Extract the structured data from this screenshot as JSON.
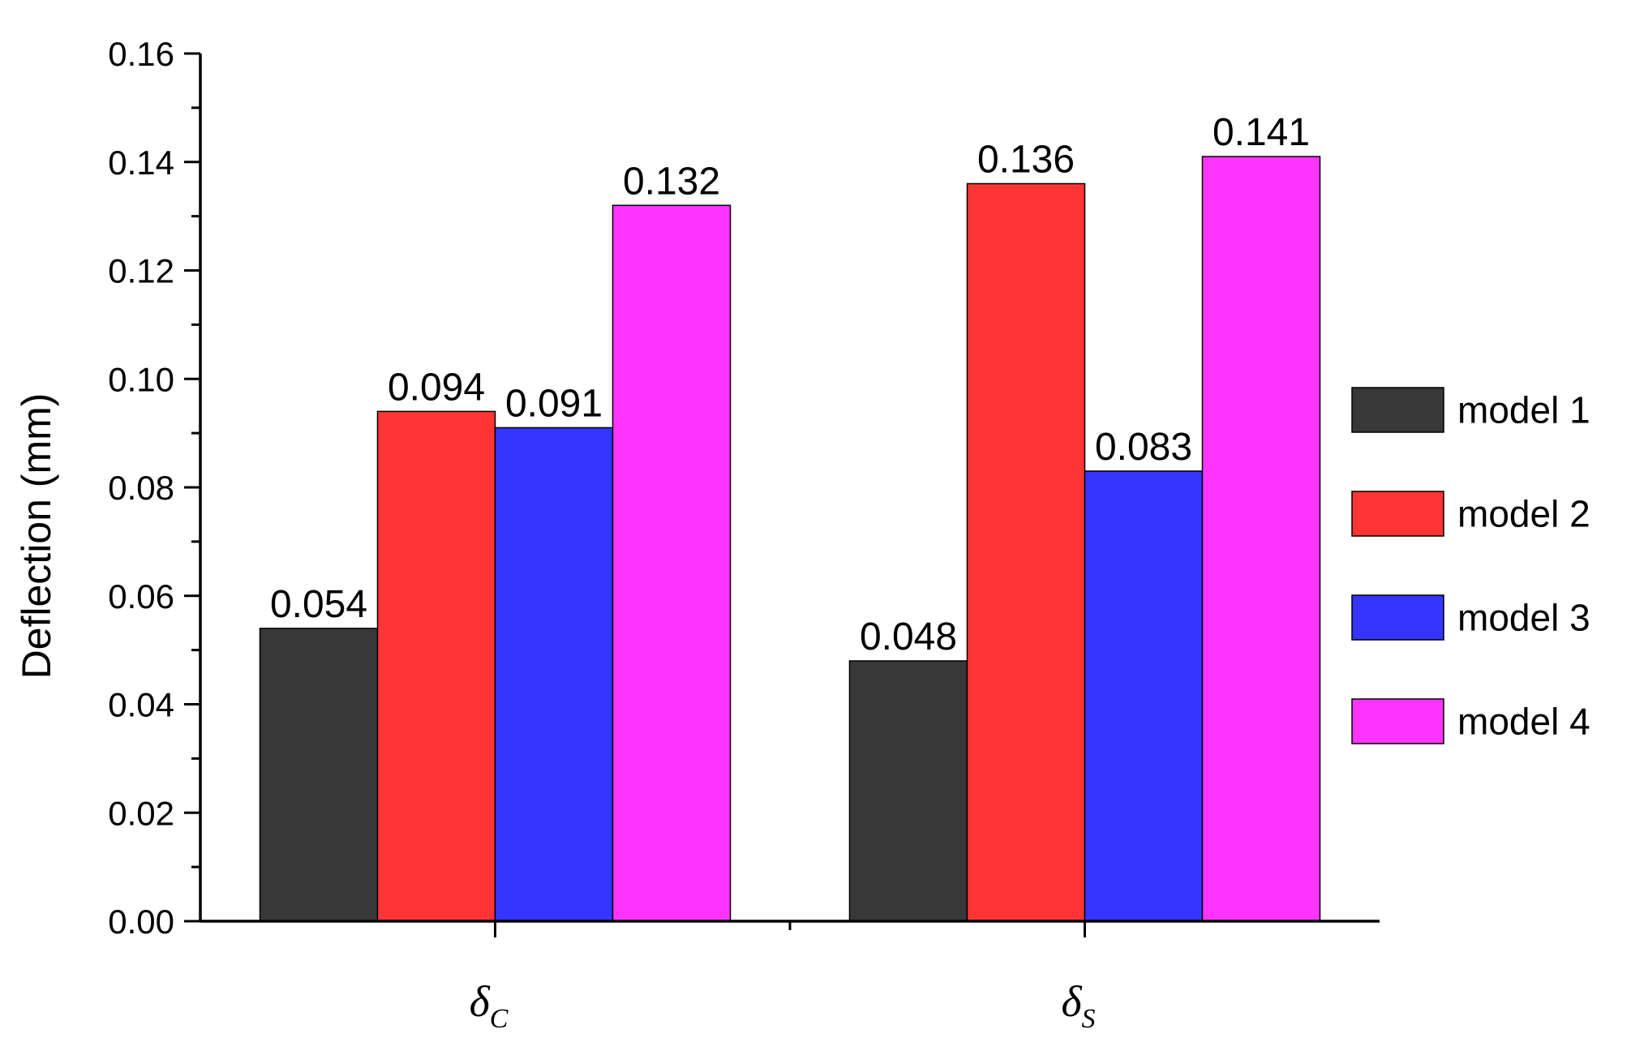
{
  "chart_data": {
    "type": "bar",
    "ylabel": "Deflection (mm)",
    "xlabel": "",
    "ylim": [
      0,
      0.16
    ],
    "yticks": [
      "0.00",
      "0.02",
      "0.04",
      "0.06",
      "0.08",
      "0.10",
      "0.12",
      "0.14",
      "0.16"
    ],
    "categories": [
      {
        "symbol": "δ",
        "sub": "C"
      },
      {
        "symbol": "δ",
        "sub": "S"
      }
    ],
    "series": [
      {
        "name": "model 1",
        "color": "#383838",
        "values": [
          0.054,
          0.048
        ],
        "labels": [
          "0.054",
          "0.048"
        ]
      },
      {
        "name": "model 2",
        "color": "#ff3535",
        "values": [
          0.094,
          0.136
        ],
        "labels": [
          "0.094",
          "0.136"
        ]
      },
      {
        "name": "model 3",
        "color": "#3535ff",
        "values": [
          0.091,
          0.083
        ],
        "labels": [
          "0.091",
          "0.083"
        ]
      },
      {
        "name": "model 4",
        "color": "#ff35ff",
        "values": [
          0.132,
          0.141
        ],
        "labels": [
          "0.132",
          "0.141"
        ]
      }
    ],
    "legend_position": "right",
    "grid": false
  }
}
